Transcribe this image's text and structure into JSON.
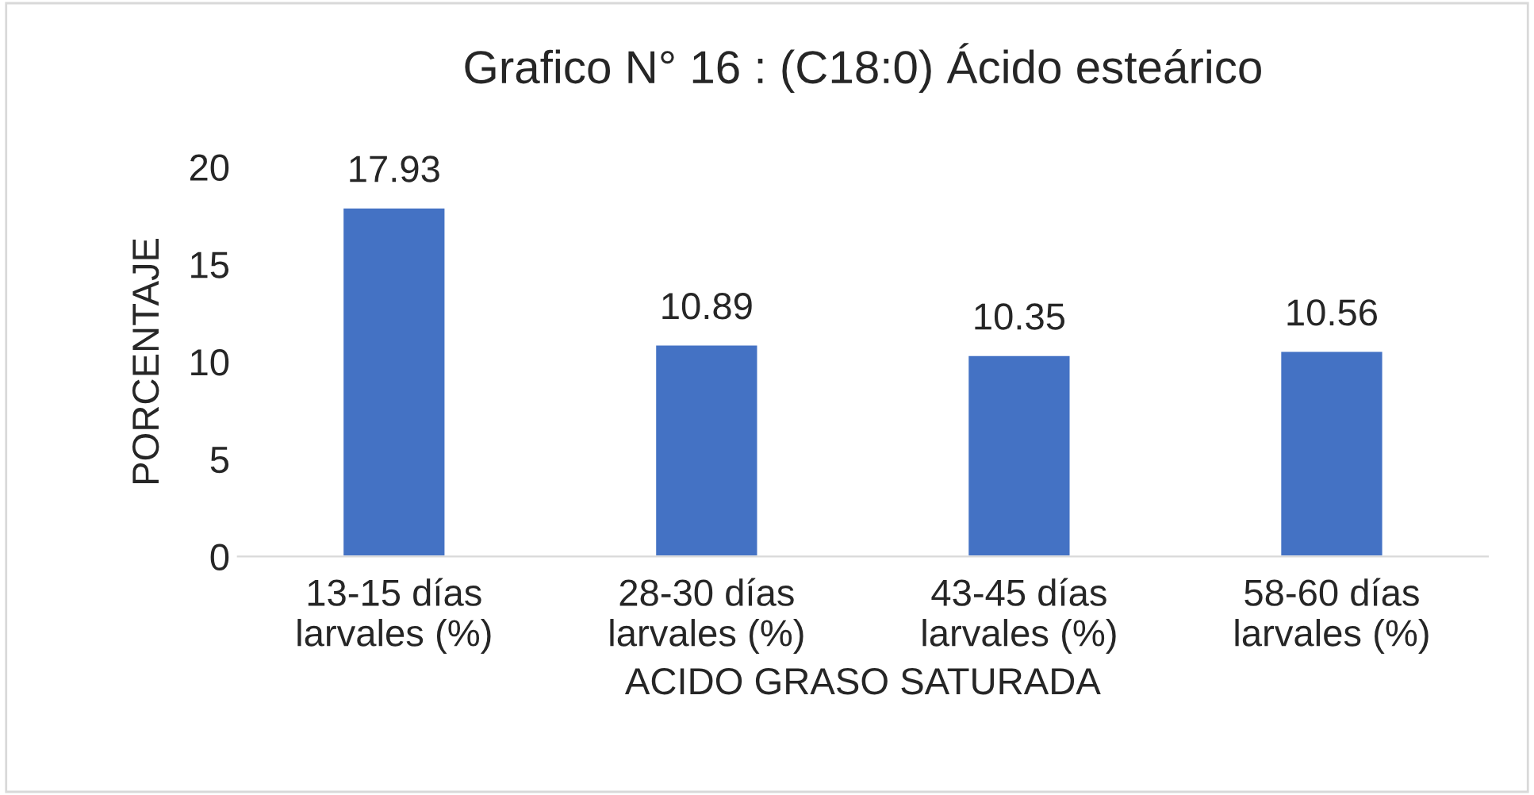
{
  "chart_data": {
    "type": "bar",
    "title": "Grafico N° 16 : (C18:0) Ácido esteárico",
    "xlabel": "ACIDO GRASO SATURADA",
    "ylabel": "PORCENTAJE",
    "categories": [
      "13-15 días\nlarvales (%)",
      "28-30 días\nlarvales (%)",
      "43-45 días\nlarvales (%)",
      "58-60 días\nlarvales (%)"
    ],
    "values": [
      17.93,
      10.89,
      10.35,
      10.56
    ],
    "color": "#4472c4",
    "ylim": [
      0,
      20
    ],
    "yticks": [
      0,
      5,
      10,
      15,
      20
    ],
    "data_labels": true,
    "grid": false,
    "legend": false
  }
}
